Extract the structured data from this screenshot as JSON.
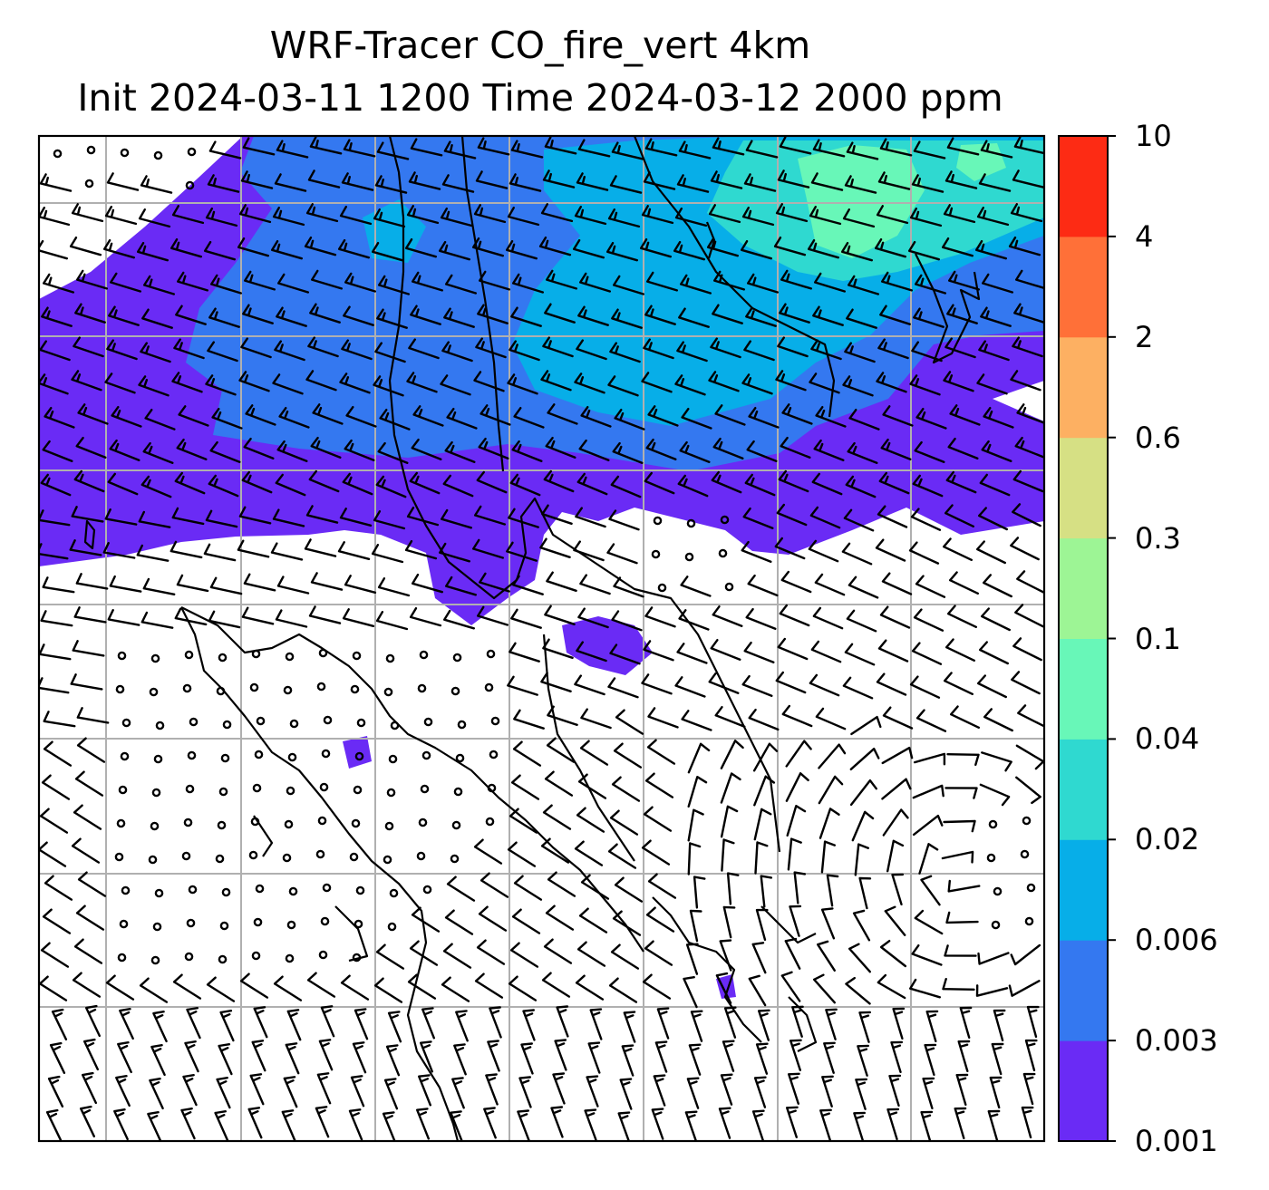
{
  "figure": {
    "title_line1": "WRF-Tracer CO_fire_vert 4km",
    "title_line2": "Init 2024-03-11 1200 Time 2024-03-12 2000 ppm"
  },
  "colorbar": {
    "levels": [
      "0.001",
      "0.003",
      "0.006",
      "0.02",
      "0.04",
      "0.1",
      "0.3",
      "0.6",
      "2",
      "4",
      "10"
    ],
    "colors": [
      "#6a2bf5",
      "#3478f0",
      "#07aee8",
      "#2fd9d0",
      "#68f7b8",
      "#9df595",
      "#d6e084",
      "#fdb062",
      "#ff7038",
      "#fd2b14"
    ]
  },
  "map": {
    "field": "CO_fire_vert",
    "units": "ppm",
    "layers": [
      "tracer-fill",
      "gridlines",
      "coastlines",
      "wind-barbs"
    ]
  }
}
